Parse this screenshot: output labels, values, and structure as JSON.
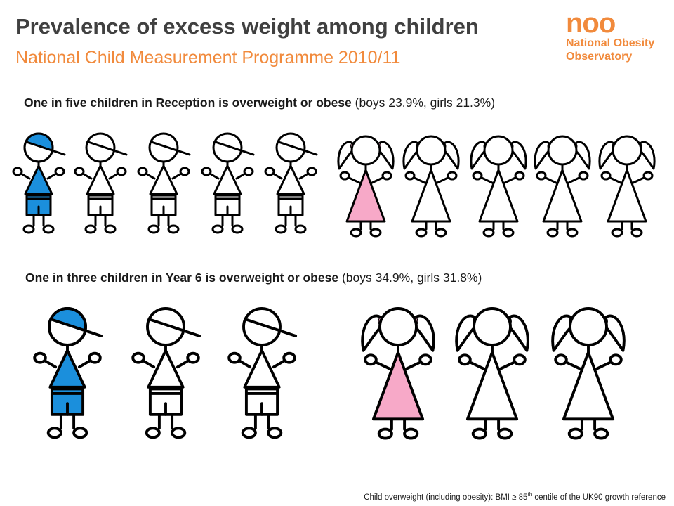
{
  "header": {
    "title": "Prevalence of excess weight among children",
    "subtitle": "National Child Measurement Programme 2010/11"
  },
  "logo": {
    "mark": "noo",
    "line1": "National Obesity",
    "line2": "Observatory"
  },
  "rows": [
    {
      "caption_bold": "One in five children in Reception is overweight or obese",
      "caption_rest": " (boys 23.9%, girls 21.3%)",
      "boys_highlighted": 1,
      "boys_total": 5,
      "girls_highlighted": 1,
      "girls_total": 5
    },
    {
      "caption_bold": "One in three children in Year 6 is overweight or obese",
      "caption_rest": " (boys 34.9%, girls 31.8%)",
      "boys_highlighted": 1,
      "boys_total": 3,
      "girls_highlighted": 1,
      "girls_total": 3
    }
  ],
  "colors": {
    "boy_highlight": "#1b8fdc",
    "girl_highlight": "#f7a9c8",
    "brand_orange": "#f18a3c",
    "title_grey": "#404040"
  },
  "footnote": {
    "pre": "Child overweight (including obesity): BMI ≥ 85",
    "sup": "th",
    "post": " centile of the UK90 growth reference"
  }
}
